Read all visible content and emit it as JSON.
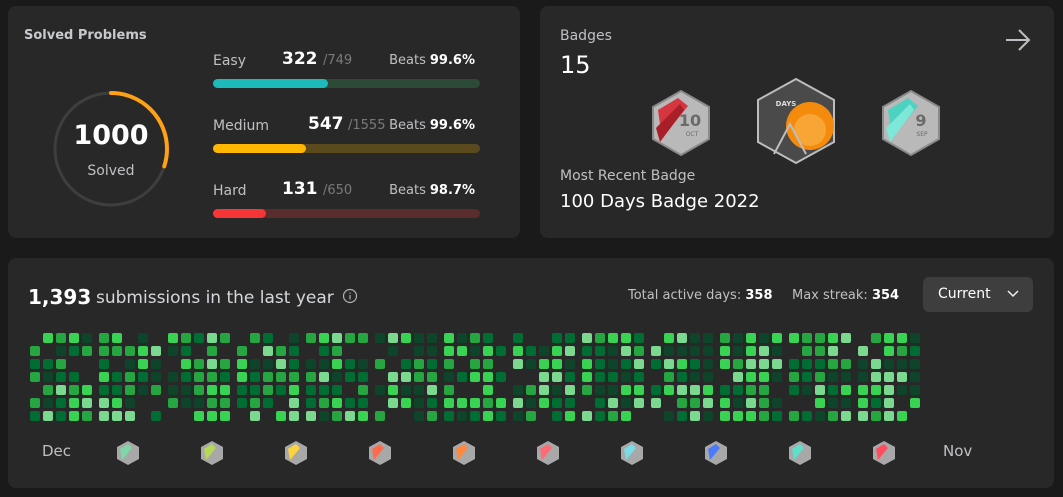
{
  "solved": {
    "title": "Solved Problems",
    "total": "1000",
    "total_label": "Solved",
    "ring_fraction": 0.3,
    "difficulties": [
      {
        "label": "Easy",
        "solved": "322",
        "total": "/749",
        "beats_label": "Beats",
        "beats": "99.6%",
        "fraction": 0.43,
        "color": "#1cbaba",
        "track": "#2c4a35"
      },
      {
        "label": "Medium",
        "solved": "547",
        "total": "/1555",
        "beats_label": "Beats",
        "beats": "99.6%",
        "fraction": 0.35,
        "color": "#ffb700",
        "track": "#5a4a1e"
      },
      {
        "label": "Hard",
        "solved": "131",
        "total": "/650",
        "beats_label": "Beats",
        "beats": "98.7%",
        "fraction": 0.2,
        "color": "#f63636",
        "track": "#5a2c2c"
      }
    ]
  },
  "badges": {
    "title": "Badges",
    "count": "15",
    "recent_label": "Most Recent Badge",
    "recent_name": "100 Days Badge 2022",
    "items": [
      {
        "icon": "october-badge-icon",
        "text": "10",
        "sub": "OCT",
        "color": "#d6363f"
      },
      {
        "icon": "100-days-badge-icon",
        "text": "DAYS",
        "sub": "",
        "color": "#f58b0d"
      },
      {
        "icon": "september-badge-icon",
        "text": "9",
        "sub": "SEP",
        "color": "#4fd1c2"
      }
    ]
  },
  "submissions": {
    "count": "1,393",
    "text": "submissions in the last year",
    "active_label": "Total active days:",
    "active_value": "358",
    "streak_label": "Max streak:",
    "streak_value": "354",
    "dropdown": "Current",
    "months": [
      "Dec",
      "Nov"
    ],
    "mini_badges": [
      "#7fd6a6",
      "#b5d957",
      "#ffd43b",
      "#ff6b4a",
      "#ff8a3d",
      "#ff6a75",
      "#7adbe6",
      "#4a7bff",
      "#5ee0c8",
      "#ff4d5e"
    ]
  }
}
